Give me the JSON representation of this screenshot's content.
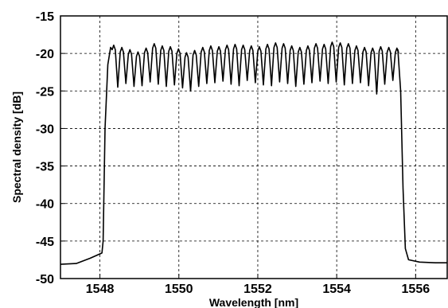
{
  "chart_data": {
    "type": "line",
    "xlabel": "Wavelength [nm]",
    "ylabel": "Spectral density [dB]",
    "xlim": [
      1547.0,
      1556.8
    ],
    "ylim": [
      -50,
      -15
    ],
    "xticks": [
      1548,
      1550,
      1552,
      1554,
      1556
    ],
    "yticks": [
      -15,
      -20,
      -25,
      -30,
      -35,
      -40,
      -45,
      -50
    ],
    "grid": true,
    "grid_style": "dashed",
    "series": [
      {
        "color": "#000000",
        "floor_left": [
          [
            1547.0,
            -48.1
          ],
          [
            1547.4,
            -48.0
          ],
          [
            1547.75,
            -47.3
          ],
          [
            1548.05,
            -46.6
          ]
        ],
        "rise": [
          [
            1548.08,
            -45.0
          ],
          [
            1548.13,
            -30.0
          ],
          [
            1548.2,
            -21.5
          ],
          [
            1548.27,
            -19.2
          ]
        ],
        "comb_start": 1548.35,
        "comb_end": 1555.5,
        "comb_period": 0.205,
        "comb_peaks_dB": [
          -18.9,
          -19.2,
          -19.5,
          -19.8,
          -19.3,
          -18.7,
          -19.0,
          -19.1,
          -19.4,
          -19.9,
          -19.6,
          -19.2,
          -19.0,
          -19.1,
          -18.9,
          -18.8,
          -18.9,
          -19.0,
          -19.1,
          -18.8,
          -18.6,
          -18.7,
          -19.0,
          -19.2,
          -19.0,
          -18.7,
          -18.8,
          -18.5,
          -18.6,
          -18.7,
          -19.0,
          -19.2,
          -19.3,
          -19.1,
          -19.2,
          -19.3
        ],
        "comb_troughs_dB": [
          -24.5,
          -24.0,
          -24.4,
          -24.3,
          -23.8,
          -24.1,
          -24.4,
          -24.2,
          -24.6,
          -25.0,
          -24.4,
          -24.0,
          -23.9,
          -23.7,
          -24.1,
          -24.3,
          -23.6,
          -23.9,
          -24.2,
          -24.3,
          -23.8,
          -24.0,
          -24.4,
          -24.1,
          -23.9,
          -23.7,
          -24.0,
          -23.8,
          -24.2,
          -24.0,
          -23.9,
          -24.3,
          -25.4,
          -24.1,
          -23.6
        ],
        "fall": [
          [
            1555.55,
            -19.5
          ],
          [
            1555.62,
            -25.0
          ],
          [
            1555.68,
            -38.0
          ],
          [
            1555.74,
            -46.0
          ],
          [
            1555.82,
            -47.5
          ]
        ],
        "floor_right": [
          [
            1556.1,
            -47.8
          ],
          [
            1556.5,
            -47.9
          ],
          [
            1556.8,
            -47.9
          ]
        ]
      }
    ]
  }
}
